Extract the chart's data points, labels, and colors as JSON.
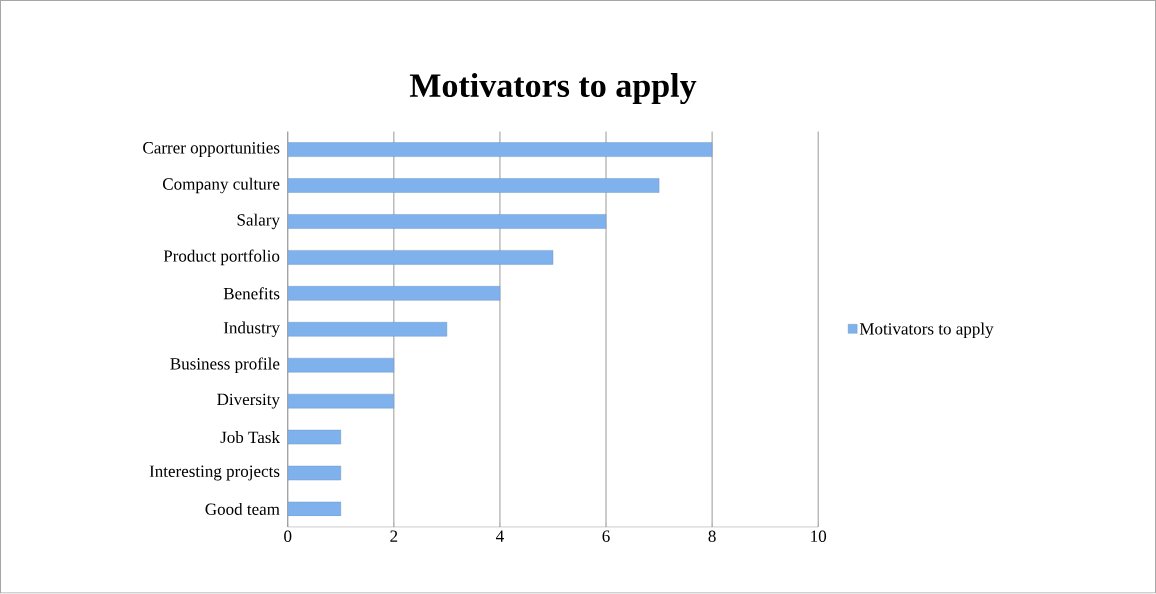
{
  "chart_data": {
    "type": "bar",
    "orientation": "horizontal",
    "title": "Motivators to apply",
    "categories": [
      "Carrer opportunities",
      "Company culture",
      "Salary",
      "Product portfolio",
      "Benefits",
      "Industry",
      "Business profile",
      "Diversity",
      "Job Task",
      "Interesting projects",
      "Good team"
    ],
    "series": [
      {
        "name": "Motivators to apply",
        "color": "#7fb2ec",
        "values": [
          8,
          7,
          6,
          5,
          4,
          3,
          2,
          2,
          1,
          1,
          1
        ]
      }
    ],
    "xlim": [
      0,
      10
    ],
    "xticks": [
      0,
      2,
      4,
      6,
      8,
      10
    ],
    "grid": "x",
    "legend": "right"
  }
}
